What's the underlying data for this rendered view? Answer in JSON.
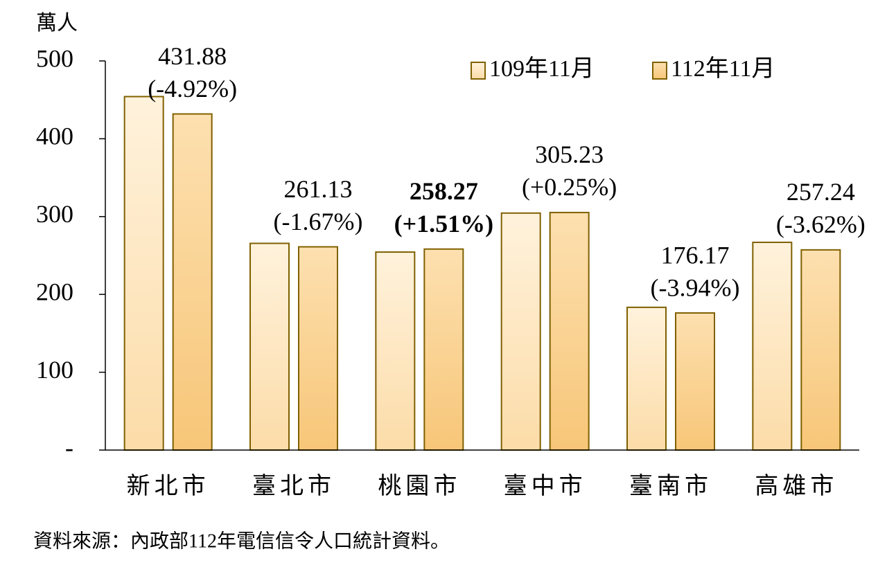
{
  "chart_data": {
    "type": "bar",
    "y_label": "萬人",
    "categories": [
      "新北市",
      "臺北市",
      "桃園市",
      "臺中市",
      "臺南市",
      "高雄市"
    ],
    "series": [
      {
        "name": "109年11月",
        "color": "#fcdca8",
        "values": [
          454.2,
          265.6,
          254.4,
          304.5,
          183.4,
          266.9
        ]
      },
      {
        "name": "112年11月",
        "color": "#f7c678",
        "values": [
          431.88,
          261.13,
          258.27,
          305.23,
          176.17,
          257.24
        ]
      }
    ],
    "change_labels": [
      "(-4.92%)",
      "(-1.67%)",
      "(+1.51%)",
      "(+0.25%)",
      "(-3.94%)",
      "(-3.62%)"
    ],
    "label_colors": [
      "#4f6228",
      "#4f6228",
      "#ff0000",
      "#ff0000",
      "#4f6228",
      "#4f6228"
    ],
    "label_bold": [
      false,
      false,
      true,
      false,
      false,
      false
    ],
    "bar_border": "#7f6000",
    "ylim": [
      0,
      500
    ],
    "yticks": [
      {
        "value": 0,
        "label": "-"
      },
      100,
      200,
      300,
      400,
      500
    ],
    "legend": "top-right",
    "note": "資料來源：內政部112年電信信令人口統計資料。"
  }
}
